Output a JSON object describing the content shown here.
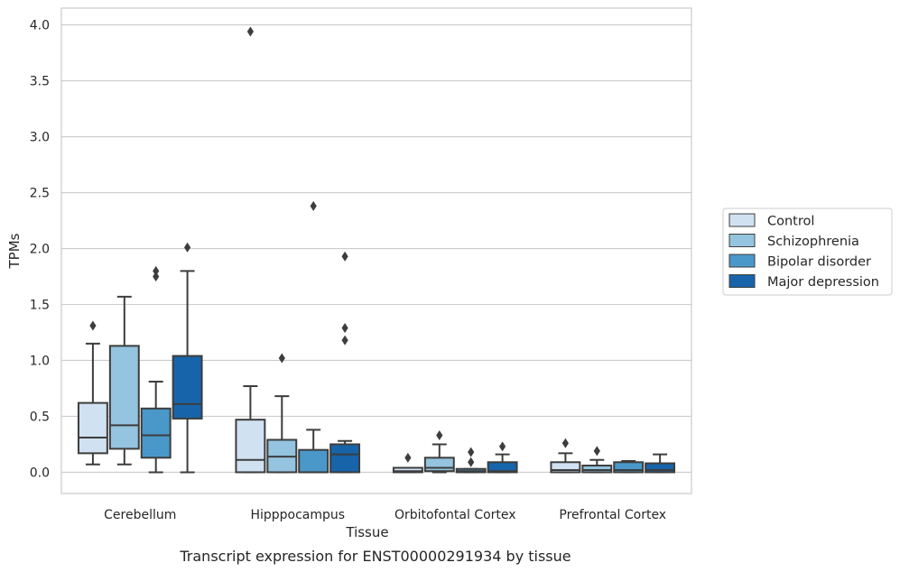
{
  "caption": "Transcript expression for ENST00000291934 by tissue",
  "chart_data": {
    "type": "box",
    "xlabel": "Tissue",
    "ylabel": "TPMs",
    "ylim": [
      -0.19,
      4.15
    ],
    "yticks": [
      "0.0",
      "0.5",
      "1.0",
      "1.5",
      "2.0",
      "2.5",
      "3.0",
      "3.5",
      "4.0"
    ],
    "ytick_values": [
      0,
      0.5,
      1.0,
      1.5,
      2.0,
      2.5,
      3.0,
      3.5,
      4.0
    ],
    "grid": "horizontal",
    "legend_position": "right, outside plot",
    "categories": [
      "Cerebellum",
      "Hipppocampus",
      "Orbitofontal Cortex",
      "Prefrontal Cortex"
    ],
    "series": [
      {
        "name": "Control",
        "color": "#d0e1f2",
        "boxes": [
          {
            "whislo": 0.07,
            "q1": 0.17,
            "med": 0.31,
            "q3": 0.62,
            "whishi": 1.15,
            "fliers": [
              1.31
            ]
          },
          {
            "whislo": 0.0,
            "q1": 0.0,
            "med": 0.11,
            "q3": 0.47,
            "whishi": 0.77,
            "fliers": [
              3.94
            ]
          },
          {
            "whislo": 0.0,
            "q1": 0.0,
            "med": 0.01,
            "q3": 0.04,
            "whishi": 0.04,
            "fliers": [
              0.13
            ]
          },
          {
            "whislo": 0.0,
            "q1": 0.0,
            "med": 0.02,
            "q3": 0.09,
            "whishi": 0.17,
            "fliers": [
              0.26
            ]
          }
        ]
      },
      {
        "name": "Schizophrenia",
        "color": "#94c4df",
        "boxes": [
          {
            "whislo": 0.07,
            "q1": 0.21,
            "med": 0.42,
            "q3": 1.13,
            "whishi": 1.57,
            "fliers": []
          },
          {
            "whislo": 0.0,
            "q1": 0.0,
            "med": 0.14,
            "q3": 0.29,
            "whishi": 0.68,
            "fliers": [
              1.02
            ]
          },
          {
            "whislo": 0.0,
            "q1": 0.01,
            "med": 0.04,
            "q3": 0.13,
            "whishi": 0.25,
            "fliers": [
              0.33
            ]
          },
          {
            "whislo": 0.0,
            "q1": 0.0,
            "med": 0.02,
            "q3": 0.06,
            "whishi": 0.11,
            "fliers": [
              0.19
            ]
          }
        ]
      },
      {
        "name": "Bipolar disorder",
        "color": "#4a98c9",
        "boxes": [
          {
            "whislo": 0.0,
            "q1": 0.13,
            "med": 0.33,
            "q3": 0.57,
            "whishi": 0.81,
            "fliers": [
              1.75,
              1.8
            ]
          },
          {
            "whislo": 0.0,
            "q1": 0.0,
            "med": 0.0,
            "q3": 0.2,
            "whishi": 0.38,
            "fliers": [
              2.38
            ]
          },
          {
            "whislo": 0.0,
            "q1": 0.0,
            "med": 0.01,
            "q3": 0.03,
            "whishi": 0.03,
            "fliers": [
              0.09,
              0.18
            ]
          },
          {
            "whislo": 0.0,
            "q1": 0.0,
            "med": 0.02,
            "q3": 0.09,
            "whishi": 0.1,
            "fliers": []
          }
        ]
      },
      {
        "name": "Major depression",
        "color": "#1764ab",
        "boxes": [
          {
            "whislo": 0.0,
            "q1": 0.48,
            "med": 0.61,
            "q3": 1.04,
            "whishi": 1.8,
            "fliers": [
              2.01
            ]
          },
          {
            "whislo": 0.0,
            "q1": 0.0,
            "med": 0.16,
            "q3": 0.25,
            "whishi": 0.28,
            "fliers": [
              1.18,
              1.29,
              1.93
            ]
          },
          {
            "whislo": 0.0,
            "q1": 0.0,
            "med": 0.01,
            "q3": 0.09,
            "whishi": 0.16,
            "fliers": [
              0.23
            ]
          },
          {
            "whislo": 0.0,
            "q1": 0.0,
            "med": 0.02,
            "q3": 0.08,
            "whishi": 0.16,
            "fliers": []
          }
        ]
      }
    ]
  }
}
